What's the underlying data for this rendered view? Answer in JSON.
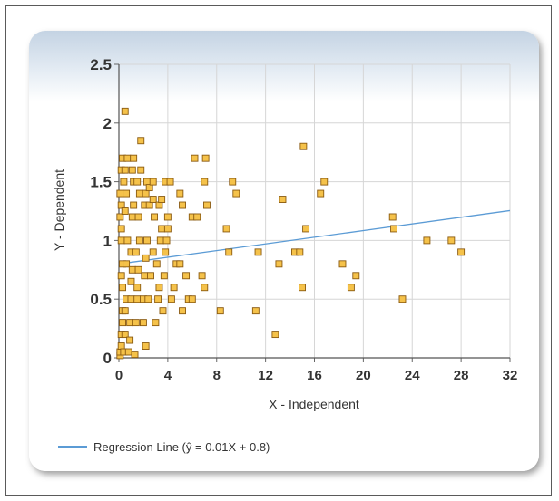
{
  "chart_data": {
    "type": "scatter",
    "xlabel": "X - Independent",
    "ylabel": "Y - Dependent",
    "xlim": [
      0,
      32
    ],
    "ylim": [
      0,
      2.5
    ],
    "x_ticks": [
      "0",
      "4",
      "8",
      "12",
      "16",
      "20",
      "24",
      "28",
      "32"
    ],
    "y_ticks": [
      "0",
      "0.5",
      "1",
      "1.5",
      "2",
      "2.5"
    ],
    "grid": true,
    "legend_position": "bottom-left",
    "series": [
      {
        "marker": "square",
        "color": "#f5c24a",
        "edge_color": "#8a5a10",
        "points": [
          [
            0.1,
            0.02
          ],
          [
            0.1,
            0.05
          ],
          [
            0.2,
            0.1
          ],
          [
            0.2,
            0.2
          ],
          [
            0.3,
            0.3
          ],
          [
            0.3,
            0.4
          ],
          [
            0.3,
            0.6
          ],
          [
            0.2,
            0.7
          ],
          [
            0.3,
            0.8
          ],
          [
            0.2,
            1.0
          ],
          [
            0.2,
            1.1
          ],
          [
            0.1,
            1.2
          ],
          [
            0.2,
            1.3
          ],
          [
            0.1,
            1.4
          ],
          [
            0.2,
            1.6
          ],
          [
            0.3,
            1.7
          ],
          [
            0.4,
            1.5
          ],
          [
            0.5,
            2.1
          ],
          [
            0.4,
            0.05
          ],
          [
            0.5,
            0.2
          ],
          [
            0.5,
            0.4
          ],
          [
            0.6,
            0.5
          ],
          [
            0.6,
            0.8
          ],
          [
            0.7,
            1.0
          ],
          [
            0.5,
            1.25
          ],
          [
            0.6,
            1.4
          ],
          [
            0.5,
            1.6
          ],
          [
            0.7,
            1.7
          ],
          [
            0.8,
            0.05
          ],
          [
            0.9,
            0.15
          ],
          [
            0.9,
            0.3
          ],
          [
            1.0,
            0.5
          ],
          [
            1.0,
            0.65
          ],
          [
            1.1,
            0.75
          ],
          [
            1.0,
            0.9
          ],
          [
            1.1,
            1.2
          ],
          [
            1.2,
            1.3
          ],
          [
            1.2,
            1.5
          ],
          [
            1.1,
            1.6
          ],
          [
            1.2,
            1.7
          ],
          [
            1.3,
            0.03
          ],
          [
            1.4,
            0.3
          ],
          [
            1.5,
            0.5
          ],
          [
            1.5,
            0.6
          ],
          [
            1.6,
            0.75
          ],
          [
            1.4,
            0.9
          ],
          [
            1.7,
            1.0
          ],
          [
            1.6,
            1.2
          ],
          [
            1.7,
            1.4
          ],
          [
            1.5,
            1.5
          ],
          [
            1.8,
            1.6
          ],
          [
            1.8,
            1.85
          ],
          [
            2.0,
            0.3
          ],
          [
            2.0,
            0.5
          ],
          [
            2.1,
            0.7
          ],
          [
            2.2,
            0.85
          ],
          [
            2.3,
            1.0
          ],
          [
            2.1,
            1.3
          ],
          [
            2.2,
            1.4
          ],
          [
            2.3,
            1.5
          ],
          [
            2.5,
            1.3
          ],
          [
            2.5,
            1.45
          ],
          [
            2.2,
            0.1
          ],
          [
            2.4,
            0.5
          ],
          [
            2.6,
            0.7
          ],
          [
            2.8,
            0.9
          ],
          [
            2.9,
            1.2
          ],
          [
            2.8,
            1.35
          ],
          [
            2.8,
            1.5
          ],
          [
            3.0,
            0.3
          ],
          [
            3.2,
            0.5
          ],
          [
            3.3,
            0.6
          ],
          [
            3.1,
            0.8
          ],
          [
            3.4,
            1.0
          ],
          [
            3.5,
            1.1
          ],
          [
            3.3,
            1.3
          ],
          [
            3.5,
            1.35
          ],
          [
            3.6,
            0.4
          ],
          [
            3.7,
            0.7
          ],
          [
            3.8,
            0.9
          ],
          [
            3.9,
            1.0
          ],
          [
            4.0,
            1.1
          ],
          [
            4.0,
            1.2
          ],
          [
            3.8,
            1.5
          ],
          [
            4.2,
            1.5
          ],
          [
            4.3,
            0.5
          ],
          [
            4.5,
            0.6
          ],
          [
            4.7,
            0.8
          ],
          [
            5.0,
            0.8
          ],
          [
            5.2,
            1.3
          ],
          [
            5.0,
            1.4
          ],
          [
            5.2,
            0.4
          ],
          [
            5.5,
            0.7
          ],
          [
            5.7,
            0.5
          ],
          [
            6.0,
            0.5
          ],
          [
            6.0,
            1.2
          ],
          [
            6.2,
            1.7
          ],
          [
            6.4,
            1.2
          ],
          [
            6.8,
            0.7
          ],
          [
            7.0,
            1.5
          ],
          [
            7.1,
            1.7
          ],
          [
            7.2,
            1.3
          ],
          [
            7.0,
            0.6
          ],
          [
            8.3,
            0.4
          ],
          [
            8.8,
            1.1
          ],
          [
            9.0,
            0.9
          ],
          [
            9.3,
            1.5
          ],
          [
            9.6,
            1.4
          ],
          [
            11.2,
            0.4
          ],
          [
            11.4,
            0.9
          ],
          [
            12.8,
            0.2
          ],
          [
            13.1,
            0.8
          ],
          [
            13.4,
            1.35
          ],
          [
            14.4,
            0.9
          ],
          [
            14.8,
            0.9
          ],
          [
            15.0,
            0.6
          ],
          [
            15.1,
            1.8
          ],
          [
            15.3,
            1.1
          ],
          [
            16.5,
            1.4
          ],
          [
            16.8,
            1.5
          ],
          [
            18.3,
            0.8
          ],
          [
            19.0,
            0.6
          ],
          [
            19.4,
            0.7
          ],
          [
            22.4,
            1.2
          ],
          [
            22.5,
            1.1
          ],
          [
            23.2,
            0.5
          ],
          [
            25.2,
            1.0
          ],
          [
            27.2,
            1.0
          ],
          [
            28.0,
            0.9
          ]
        ]
      }
    ],
    "regression": {
      "name": "Regression Line (ŷ = 0.01X + 0.8)",
      "slope": 0.0142,
      "intercept": 0.8,
      "x_range": [
        0,
        32
      ],
      "color": "#5b9bd5"
    }
  }
}
